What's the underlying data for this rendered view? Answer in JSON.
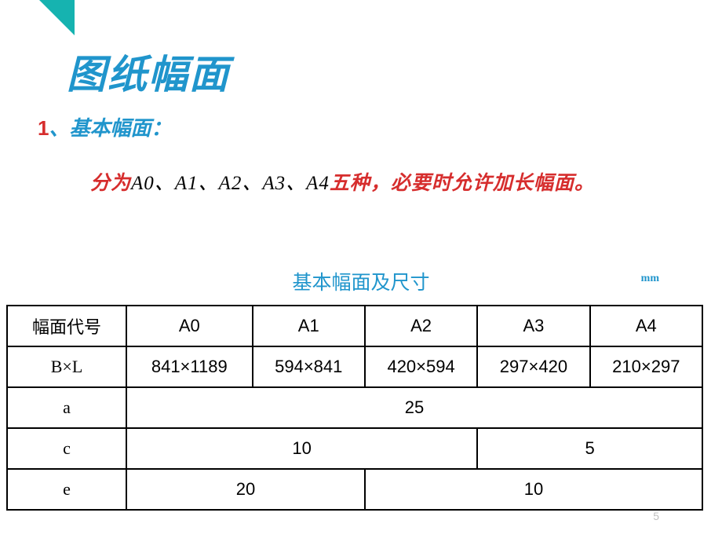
{
  "triangle_color": "#16b3b0",
  "title": "图纸幅面",
  "subtitle_number": "1",
  "subtitle_sep": "、",
  "subtitle_text": "基本幅面：",
  "desc_prefix": "分为",
  "desc_list": "A0、A1、A2、A3、A4",
  "desc_suffix": "五种，必要时允许加长幅面。",
  "table_title": "基本幅面及尺寸",
  "unit": "mm",
  "table": {
    "header_label": "幅面代号",
    "columns": [
      "A0",
      "A1",
      "A2",
      "A3",
      "A4"
    ],
    "rows": [
      {
        "label": "B×L",
        "cells": [
          "841×1189",
          "594×841",
          "420×594",
          "297×420",
          "210×297"
        ]
      },
      {
        "label": "a",
        "merged": [
          {
            "span": 5,
            "value": "25"
          }
        ]
      },
      {
        "label": "c",
        "merged": [
          {
            "span": 3,
            "value": "10"
          },
          {
            "span": 2,
            "value": "5"
          }
        ]
      },
      {
        "label": "e",
        "merged": [
          {
            "span": 2,
            "value": "20"
          },
          {
            "span": 3,
            "value": "10"
          }
        ]
      }
    ]
  },
  "page_number": "5",
  "colors": {
    "title": "#2095cc",
    "accent_red": "#d62d2d",
    "text": "#000000",
    "pagenum": "#bfbfbf"
  }
}
